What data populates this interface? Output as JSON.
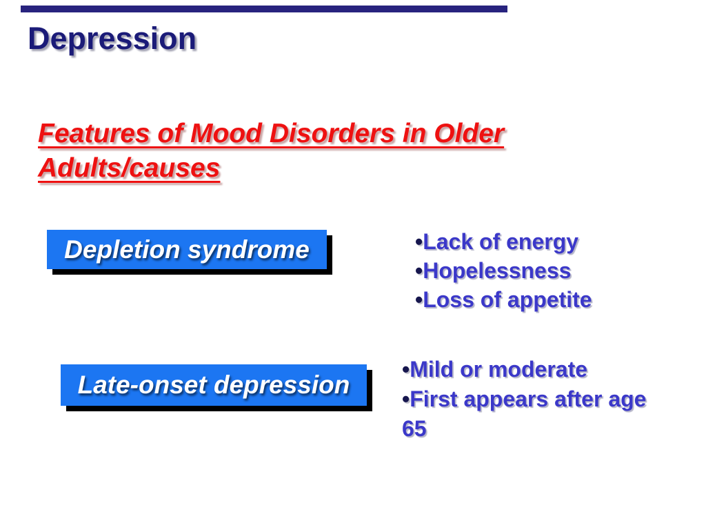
{
  "slide": {
    "title": "Depression",
    "heading": {
      "line1": "Features of Mood Disorders in Older",
      "line2": "Adults/causes"
    },
    "section1": {
      "box_label": "Depletion syndrome",
      "lines": [
        {
          "bullet": "•",
          "text": "Lack of energy"
        },
        {
          "bullet": "•",
          "text": "Hopelessness"
        },
        {
          "bullet": "•",
          "text": "Loss of appetite"
        }
      ]
    },
    "section2": {
      "box_label": "Late-onset depression",
      "lines": [
        {
          "bullet": "•",
          "text": "Mild or moderate"
        },
        {
          "bullet": "•",
          "text": "First appears after age"
        },
        {
          "bullet": "",
          "text": "65"
        }
      ]
    },
    "colors": {
      "top_bar_navy": "#28237E",
      "title_navy": "#1B1B78",
      "heading_red": "#EE1111",
      "box_blue": "#1C76F2",
      "bullet_blue": "#3B38C9"
    }
  }
}
